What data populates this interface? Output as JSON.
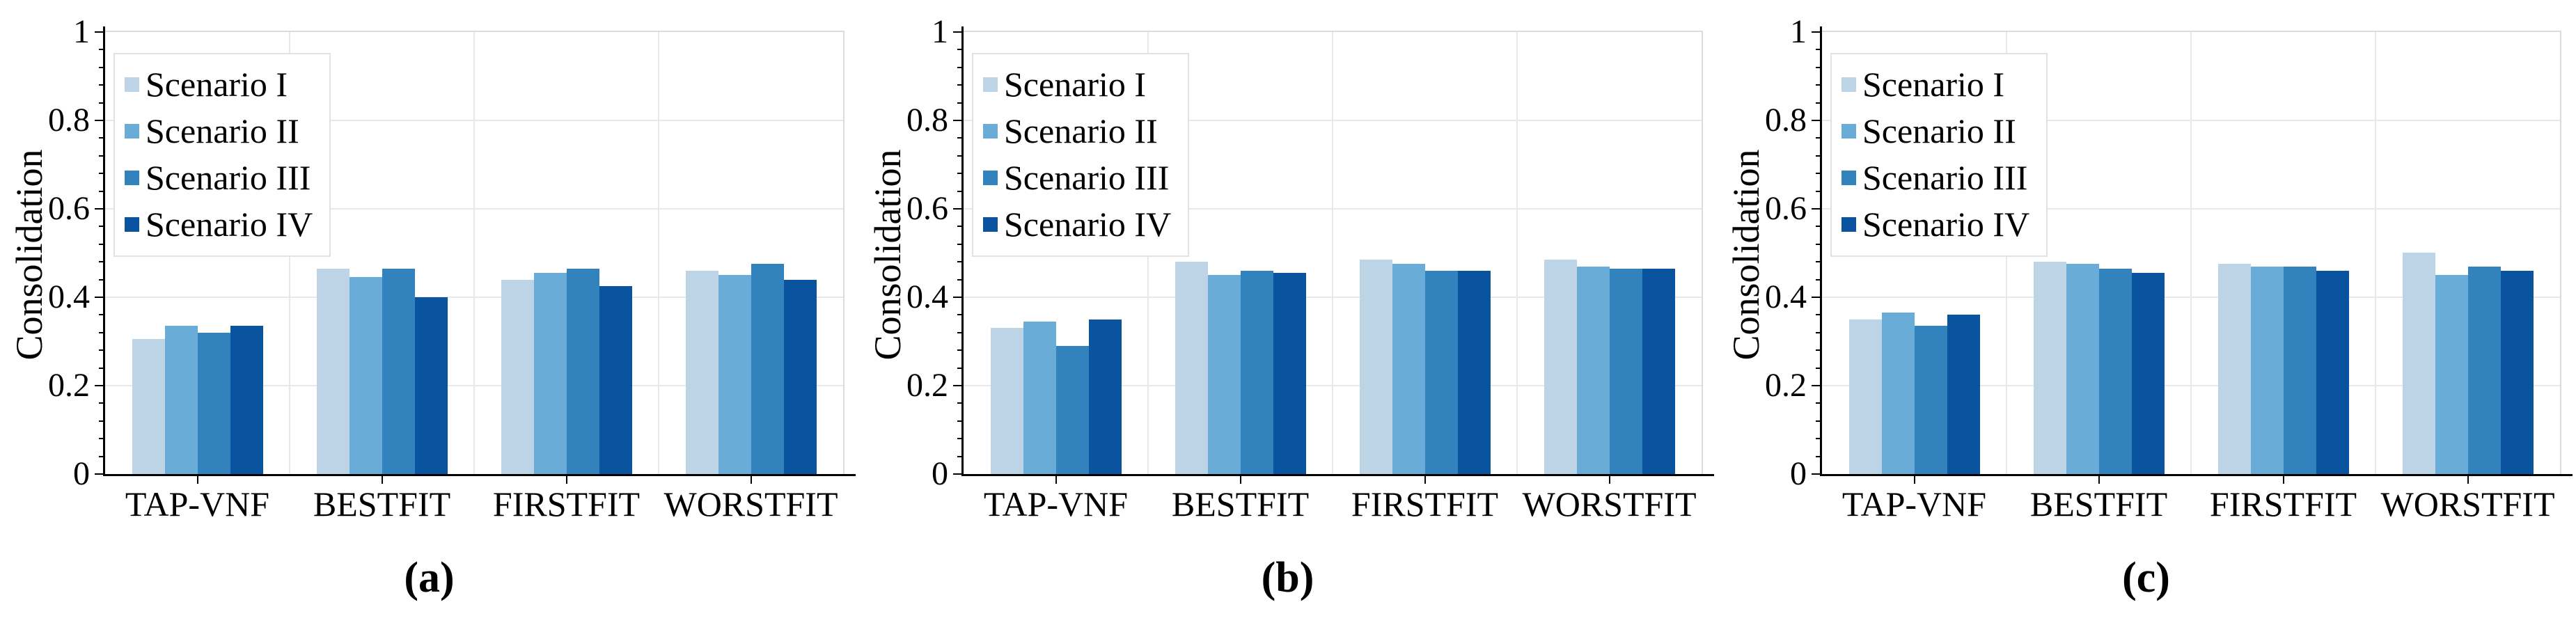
{
  "figure": {
    "description": "Three grouped bar charts comparing consolidation of placement algorithms under four scenarios",
    "background": "#ffffff",
    "axis_color": "#000000",
    "grid_color": "#e8e8e8"
  },
  "legend": {
    "position": "top-left",
    "items": [
      "Scenario I",
      "Scenario II",
      "Scenario III",
      "Scenario IV"
    ]
  },
  "chart_data": [
    {
      "type": "bar",
      "panel": "a",
      "caption": "(a)",
      "title": "",
      "xlabel": "",
      "ylabel": "Consolidation",
      "ylim": [
        0,
        1
      ],
      "yticks": [
        0,
        0.2,
        0.4,
        0.6,
        0.8,
        1
      ],
      "ytick_labels": [
        "0",
        "0.2",
        "0.4",
        "0.6",
        "0.8",
        "1"
      ],
      "minor_tick_step": 0.04,
      "grid": true,
      "legend_position": "top-left",
      "categories": [
        "TAP-VNF",
        "BESTFIT",
        "FIRSTFIT",
        "WORSTFIT"
      ],
      "series": [
        {
          "name": "Scenario I",
          "color": "#bdd4e6",
          "values": [
            0.305,
            0.465,
            0.44,
            0.46
          ]
        },
        {
          "name": "Scenario II",
          "color": "#6aacd8",
          "values": [
            0.335,
            0.445,
            0.455,
            0.45
          ]
        },
        {
          "name": "Scenario III",
          "color": "#3282be",
          "values": [
            0.32,
            0.465,
            0.465,
            0.475
          ]
        },
        {
          "name": "Scenario IV",
          "color": "#0a539e",
          "values": [
            0.335,
            0.4,
            0.425,
            0.44
          ]
        }
      ]
    },
    {
      "type": "bar",
      "panel": "b",
      "caption": "(b)",
      "title": "",
      "xlabel": "",
      "ylabel": "Consolidation",
      "ylim": [
        0,
        1
      ],
      "yticks": [
        0,
        0.2,
        0.4,
        0.6,
        0.8,
        1
      ],
      "ytick_labels": [
        "0",
        "0.2",
        "0.4",
        "0.6",
        "0.8",
        "1"
      ],
      "minor_tick_step": 0.04,
      "grid": true,
      "legend_position": "top-left",
      "categories": [
        "TAP-VNF",
        "BESTFIT",
        "FIRSTFIT",
        "WORSTFIT"
      ],
      "series": [
        {
          "name": "Scenario I",
          "color": "#bdd4e6",
          "values": [
            0.33,
            0.48,
            0.485,
            0.485
          ]
        },
        {
          "name": "Scenario II",
          "color": "#6aacd8",
          "values": [
            0.345,
            0.45,
            0.475,
            0.47
          ]
        },
        {
          "name": "Scenario III",
          "color": "#3282be",
          "values": [
            0.29,
            0.46,
            0.46,
            0.465
          ]
        },
        {
          "name": "Scenario IV",
          "color": "#0a539e",
          "values": [
            0.35,
            0.455,
            0.46,
            0.465
          ]
        }
      ]
    },
    {
      "type": "bar",
      "panel": "c",
      "caption": "(c)",
      "title": "",
      "xlabel": "",
      "ylabel": "Consolidation",
      "ylim": [
        0,
        1
      ],
      "yticks": [
        0,
        0.2,
        0.4,
        0.6,
        0.8,
        1
      ],
      "ytick_labels": [
        "0",
        "0.2",
        "0.4",
        "0.6",
        "0.8",
        "1"
      ],
      "minor_tick_step": 0.04,
      "grid": true,
      "legend_position": "top-left",
      "categories": [
        "TAP-VNF",
        "BESTFIT",
        "FIRSTFIT",
        "WORSTFIT"
      ],
      "series": [
        {
          "name": "Scenario I",
          "color": "#bdd4e6",
          "values": [
            0.35,
            0.48,
            0.475,
            0.5
          ]
        },
        {
          "name": "Scenario II",
          "color": "#6aacd8",
          "values": [
            0.365,
            0.475,
            0.47,
            0.45
          ]
        },
        {
          "name": "Scenario III",
          "color": "#3282be",
          "values": [
            0.335,
            0.465,
            0.47,
            0.47
          ]
        },
        {
          "name": "Scenario IV",
          "color": "#0a539e",
          "values": [
            0.36,
            0.455,
            0.46,
            0.46
          ]
        }
      ]
    }
  ]
}
